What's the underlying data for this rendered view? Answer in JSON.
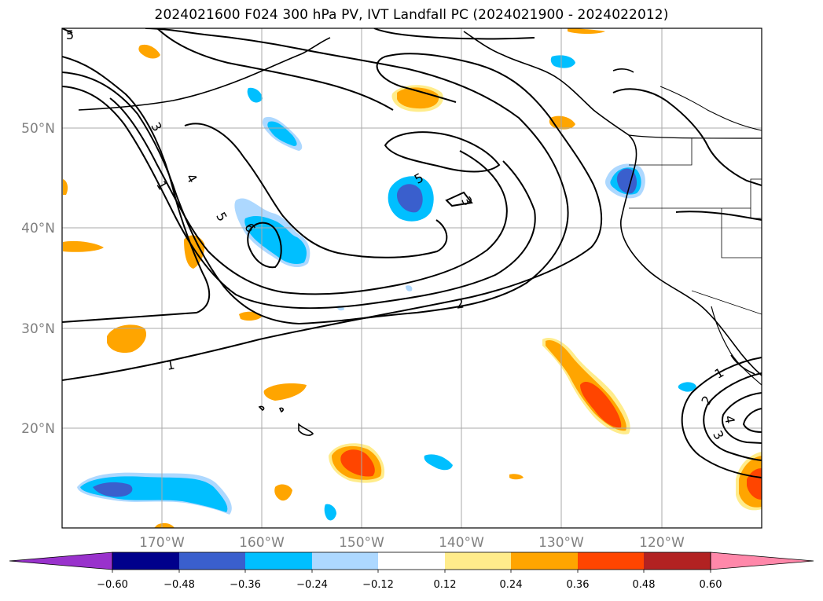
{
  "title": "2024021600 F024 300 hPa PV, IVT Landfall PC (2024021900 - 2024022012)",
  "map": {
    "projection": "equirectangular",
    "lon_range": [
      -180,
      -110
    ],
    "lat_range": [
      10,
      60
    ],
    "gridlines": true,
    "gridline_color": "#a9a9a9",
    "coastline_color": "#000000",
    "lat_ticks": [
      {
        "value": 50,
        "label": "50°N"
      },
      {
        "value": 40,
        "label": "40°N"
      },
      {
        "value": 30,
        "label": "30°N"
      },
      {
        "value": 20,
        "label": "20°N"
      }
    ],
    "lon_ticks": [
      {
        "value": -170,
        "label": "170°W"
      },
      {
        "value": -160,
        "label": "160°W"
      },
      {
        "value": -150,
        "label": "150°W"
      },
      {
        "value": -140,
        "label": "140°W"
      },
      {
        "value": -130,
        "label": "130°W"
      },
      {
        "value": -120,
        "label": "120°W"
      }
    ]
  },
  "pv_contour_labels": [
    "5",
    "3",
    "4",
    "1",
    "5",
    "6",
    "5",
    "3",
    "2",
    "1",
    "1",
    "2",
    "4",
    "3"
  ],
  "colorbar": {
    "extend": "both",
    "colors": [
      "#9932cc",
      "#00008b",
      "#3a5fcd",
      "#00bfff",
      "#add8ff",
      "#ffffff",
      "#ffec8b",
      "#ffa500",
      "#ff4500",
      "#b22222",
      "#ff88aa"
    ],
    "ticks": [
      "−0.60",
      "−0.48",
      "−0.36",
      "−0.24",
      "−0.12",
      "0.12",
      "0.24",
      "0.36",
      "0.48",
      "0.60"
    ]
  }
}
